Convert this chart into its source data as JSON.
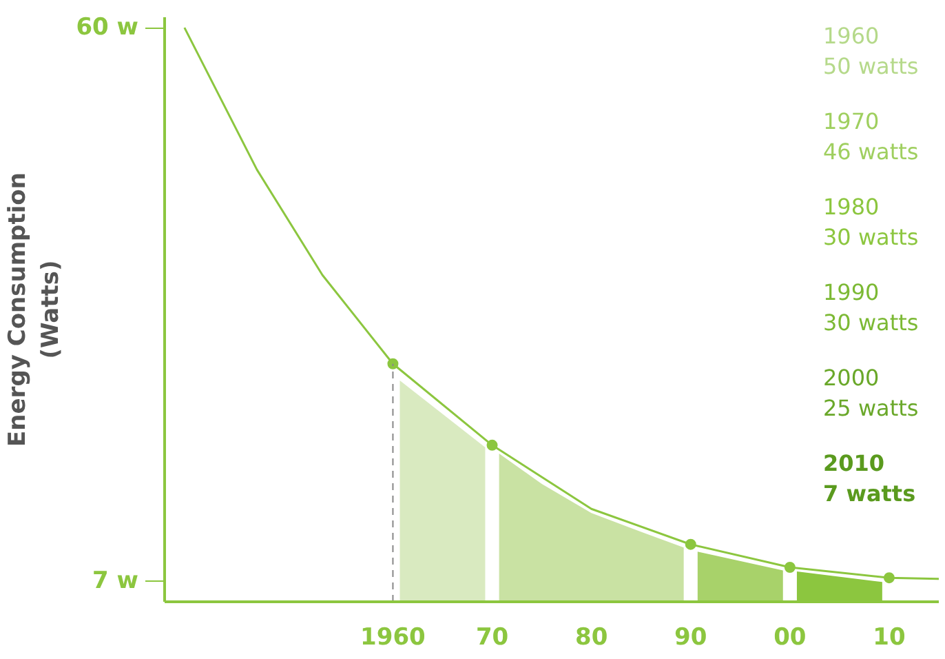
{
  "chart_data": {
    "type": "line",
    "ylabel": "Energy Consumption\n(Watts)",
    "xlim": [
      1937,
      2015
    ],
    "ylim": [
      5,
      61
    ],
    "xticks": [
      {
        "value": 1960,
        "label": "1960"
      },
      {
        "value": 1970,
        "label": "70"
      },
      {
        "value": 1980,
        "label": "80"
      },
      {
        "value": 1990,
        "label": "90"
      },
      {
        "value": 2000,
        "label": "00"
      },
      {
        "value": 2010,
        "label": "10"
      }
    ],
    "yticks": [
      {
        "value": 7,
        "label": "7 w"
      },
      {
        "value": 60,
        "label": "60 w"
      }
    ],
    "grid": false,
    "series": [
      {
        "type": "area",
        "color": "#d9eac0",
        "x": [
          1960.7,
          1969.3
        ],
        "values": [
          26.2,
          19.8
        ]
      },
      {
        "type": "area",
        "color": "#c9e2a3",
        "x": [
          1970.7,
          1975,
          1980,
          1985,
          1989.3
        ],
        "values": [
          19.2,
          16.3,
          13.5,
          11.7,
          10.2
        ]
      },
      {
        "type": "area",
        "color": "#a8d26a",
        "x": [
          1990.7,
          1999.3
        ],
        "values": [
          9.8,
          8.0
        ]
      },
      {
        "type": "area",
        "color": "#8cc63f",
        "x": [
          2000.7,
          2009.3
        ],
        "values": [
          7.9,
          6.9
        ]
      },
      {
        "color": "#8cc63f",
        "line_style": "solid",
        "x": [
          1939,
          1946.3,
          1952.9,
          1960,
          1970,
          1980,
          1990,
          2000,
          2010,
          2015
        ],
        "values": [
          60,
          46.4,
          36.3,
          27.8,
          20.0,
          13.9,
          10.5,
          8.3,
          7.3,
          7.2
        ]
      },
      {
        "type": "scatter",
        "color": "#8cc63f",
        "marker": "circle",
        "x": [
          1960,
          1970,
          1990,
          2000,
          2010
        ],
        "values": [
          27.8,
          20.0,
          10.5,
          8.3,
          7.3
        ]
      }
    ],
    "ref_lines": [
      {
        "axis": "x",
        "value": 1960,
        "color": "#888888",
        "line_style": "dashed"
      }
    ],
    "annotations": [
      "1960\n50 watts",
      "1970\n46 watts",
      "1980\n30 watts",
      "1990\n30 watts",
      "2000\n25 watts",
      "2010\n7 watts"
    ]
  }
}
